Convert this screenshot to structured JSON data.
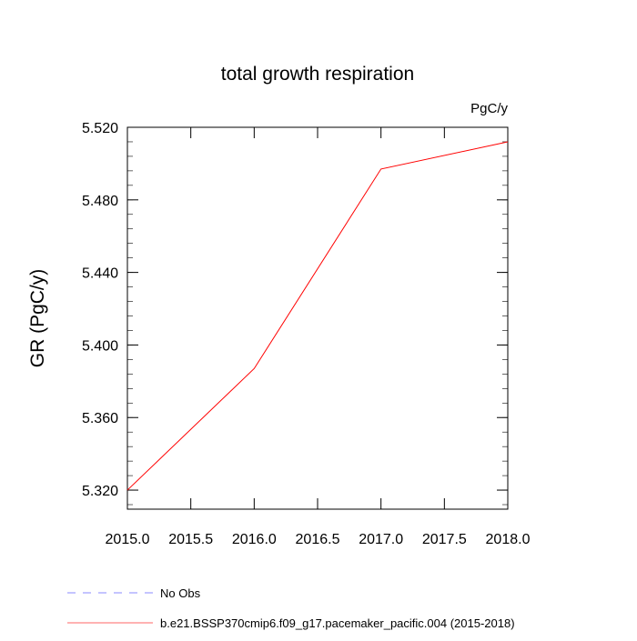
{
  "chart_data": {
    "type": "line",
    "title": "total growth respiration",
    "units_label": "PgC/y",
    "xlabel": "",
    "ylabel": "GR  (PgC/y)",
    "xlim": [
      2015.0,
      2018.0
    ],
    "ylim": [
      5.3095,
      5.52
    ],
    "xticks": [
      "2015.0",
      "2015.5",
      "2016.0",
      "2016.5",
      "2017.0",
      "2017.5",
      "2018.0"
    ],
    "yticks": [
      "5.320",
      "5.360",
      "5.400",
      "5.440",
      "5.480",
      "5.520"
    ],
    "series": [
      {
        "name": "b.e21.BSSP370cmip6.f09_g17.pacemaker_pacific.004 (2015-2018)",
        "color": "#ff0000",
        "x": [
          2015,
          2016,
          2017,
          2018
        ],
        "values": [
          5.32,
          5.387,
          5.497,
          5.512
        ]
      }
    ],
    "legend": [
      {
        "label": "No Obs",
        "color": "#8888ff",
        "style": "dashed"
      },
      {
        "label": "b.e21.BSSP370cmip6.f09_g17.pacemaker_pacific.004 (2015-2018)",
        "color": "#ff6666",
        "style": "solid"
      }
    ],
    "legend_placement": "bottom-left"
  }
}
